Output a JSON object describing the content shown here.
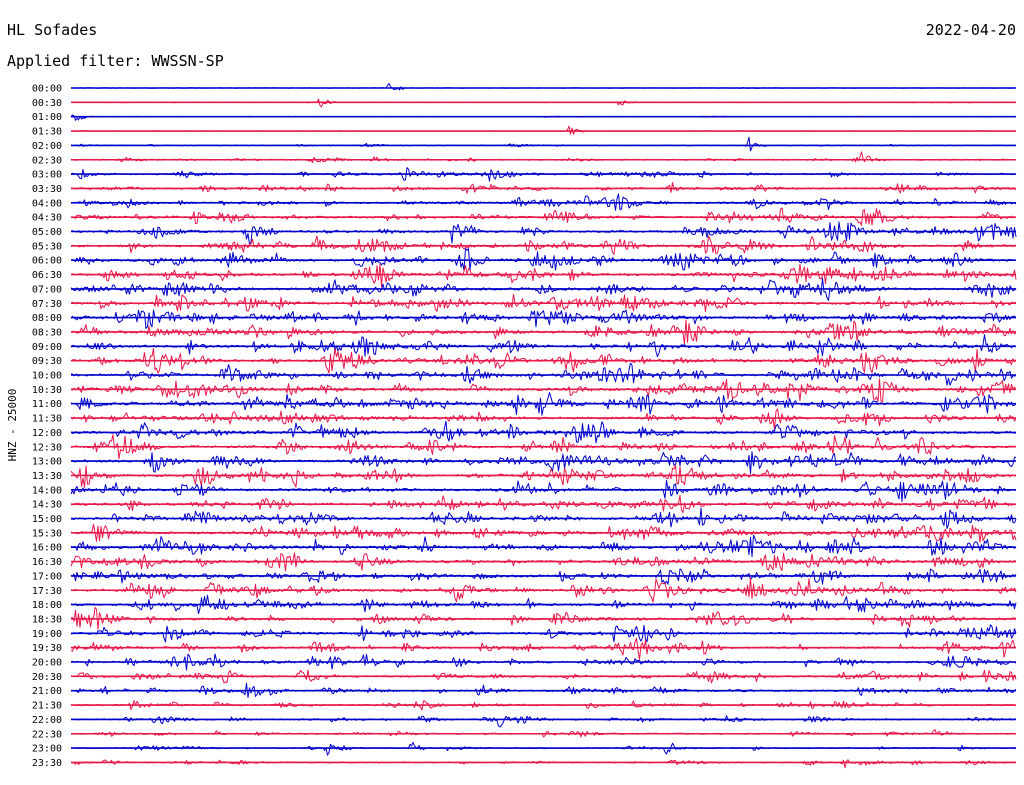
{
  "header": {
    "station": "HL Sofades",
    "date": "2022-04-20",
    "filter": "Applied filter: WWSSN-SP"
  },
  "chart_data": {
    "type": "line",
    "ylabel": "HNZ - 25000",
    "row_labels": [
      "00:00",
      "00:30",
      "01:00",
      "01:30",
      "02:00",
      "02:30",
      "03:00",
      "03:30",
      "04:00",
      "04:30",
      "05:00",
      "05:30",
      "06:00",
      "06:30",
      "07:00",
      "07:30",
      "08:00",
      "08:30",
      "09:00",
      "09:30",
      "10:00",
      "10:30",
      "11:00",
      "11:30",
      "12:00",
      "12:30",
      "13:00",
      "13:30",
      "14:00",
      "14:30",
      "15:00",
      "15:30",
      "16:00",
      "16:30",
      "17:00",
      "17:30",
      "18:00",
      "18:30",
      "19:00",
      "19:30",
      "20:00",
      "20:30",
      "21:00",
      "21:30",
      "22:00",
      "22:30",
      "23:00",
      "23:30"
    ],
    "row_minutes": 30,
    "colors": [
      "#0000cc",
      "#e8184a"
    ],
    "noise_level_by_row": [
      0.05,
      0.05,
      0.05,
      0.05,
      0.15,
      0.35,
      0.5,
      0.6,
      0.7,
      0.75,
      0.85,
      0.85,
      0.95,
      0.95,
      0.95,
      0.95,
      1.0,
      1.0,
      1.0,
      1.0,
      1.0,
      1.0,
      1.0,
      0.95,
      0.95,
      0.95,
      0.95,
      0.95,
      0.95,
      0.95,
      0.95,
      0.95,
      1.0,
      0.95,
      0.95,
      0.95,
      0.9,
      0.85,
      0.8,
      0.75,
      0.7,
      0.65,
      0.6,
      0.55,
      0.45,
      0.4,
      0.35,
      0.35
    ],
    "events": [
      {
        "row": "00:00",
        "minute": 10.1,
        "amplitude": 1.0
      },
      {
        "row": "00:30",
        "minute": 7.9,
        "amplitude": 0.8
      },
      {
        "row": "00:30",
        "minute": 17.4,
        "amplitude": 0.4
      },
      {
        "row": "01:00",
        "minute": 0.1,
        "amplitude": 0.7
      },
      {
        "row": "01:30",
        "minute": 15.8,
        "amplitude": 0.7
      },
      {
        "row": "02:00",
        "minute": 21.5,
        "amplitude": 0.9
      },
      {
        "row": "02:30",
        "minute": 25.1,
        "amplitude": 0.8
      },
      {
        "row": "03:00",
        "minute": 10.5,
        "amplitude": 1.0
      },
      {
        "row": "03:00",
        "minute": 0.3,
        "amplitude": 0.8
      },
      {
        "row": "05:00",
        "minute": 12.1,
        "amplitude": 1.0
      },
      {
        "row": "08:00",
        "minute": 29.0,
        "amplitude": 1.2
      },
      {
        "row": "09:30",
        "minute": 28.7,
        "amplitude": 1.2
      },
      {
        "row": "12:00",
        "minute": 16.8,
        "amplitude": 0.9
      },
      {
        "row": "13:00",
        "minute": 20.0,
        "amplitude": 1.2
      },
      {
        "row": "16:00",
        "minute": 11.2,
        "amplitude": 0.9
      },
      {
        "row": "19:00",
        "minute": 9.2,
        "amplitude": 1.0
      },
      {
        "row": "22:00",
        "minute": 13.6,
        "amplitude": 0.9
      },
      {
        "row": "23:00",
        "minute": 8.1,
        "amplitude": 1.0
      },
      {
        "row": "23:00",
        "minute": 10.8,
        "amplitude": 1.0
      },
      {
        "row": "23:00",
        "minute": 18.9,
        "amplitude": 1.0
      },
      {
        "row": "23:30",
        "minute": 23.3,
        "amplitude": 0.8
      },
      {
        "row": "23:30",
        "minute": 24.5,
        "amplitude": 0.7
      }
    ]
  }
}
